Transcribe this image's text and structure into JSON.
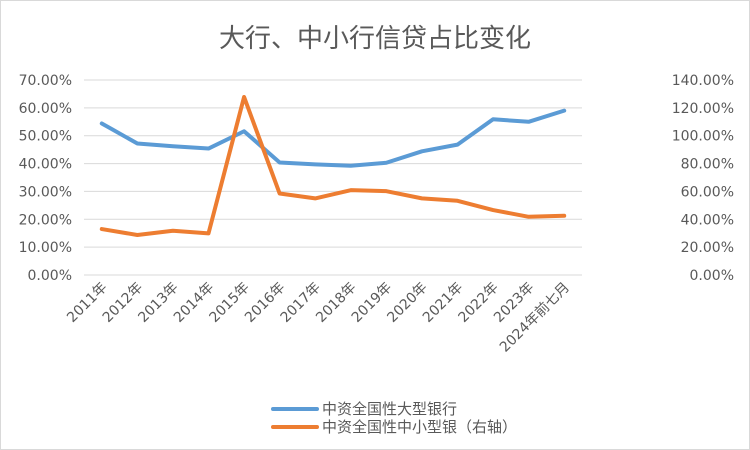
{
  "chart_data": {
    "type": "line",
    "title": "大行、中小行信贷占比变化",
    "categories": [
      "2011年",
      "2012年",
      "2013年",
      "2014年",
      "2015年",
      "2016年",
      "2017年",
      "2018年",
      "2019年",
      "2020年",
      "2021年",
      "2022年",
      "2023年",
      "2024年前七月"
    ],
    "y_left": {
      "range": [
        0,
        70
      ],
      "ticks": [
        "0.00%",
        "10.00%",
        "20.00%",
        "30.00%",
        "40.00%",
        "50.00%",
        "60.00%",
        "70.00%"
      ]
    },
    "y_right": {
      "range": [
        0,
        140
      ],
      "ticks": [
        "0.00%",
        "20.00%",
        "40.00%",
        "60.00%",
        "80.00%",
        "100.00%",
        "120.00%",
        "140.00%"
      ]
    },
    "grid": true,
    "legend_position": "bottom",
    "series": [
      {
        "name": "中资全国性大型银行",
        "axis": "left",
        "color": "#5B9BD5",
        "values": [
          54.4,
          47.2,
          46.2,
          45.4,
          51.6,
          40.4,
          39.7,
          39.2,
          40.3,
          44.4,
          46.8,
          55.9,
          55.0,
          59.0
        ]
      },
      {
        "name": "中资全国性中小型银（右轴）",
        "axis": "right",
        "color": "#ED7D31",
        "values": [
          33.0,
          28.7,
          31.8,
          29.9,
          127.8,
          58.5,
          55.0,
          60.9,
          60.2,
          55.0,
          53.3,
          46.6,
          41.8,
          42.5
        ]
      }
    ]
  }
}
